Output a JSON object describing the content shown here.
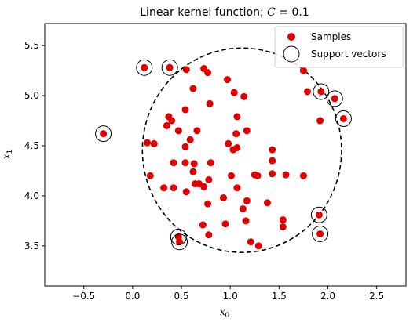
{
  "chart_data": {
    "type": "scatter",
    "title": "Linear kernel function; C = 0.1",
    "title_parts": {
      "prefix": "Linear kernel function; ",
      "var": "C",
      "suffix": " = 0.1"
    },
    "xlabel": {
      "base": "x",
      "sub": "0"
    },
    "ylabel": {
      "base": "x",
      "sub": "1"
    },
    "xlim": [
      -0.9,
      2.8
    ],
    "ylim": [
      3.1,
      5.72
    ],
    "xticks": [
      -0.5,
      0.0,
      0.5,
      1.0,
      1.5,
      2.0,
      2.5
    ],
    "xtick_labels": [
      "−0.5",
      "0.0",
      "0.5",
      "1.0",
      "1.5",
      "2.0",
      "2.5"
    ],
    "yticks": [
      3.5,
      4.0,
      4.5,
      5.0,
      5.5
    ],
    "ytick_labels": [
      "3.5",
      "4.0",
      "4.5",
      "5.0",
      "5.5"
    ],
    "grid": false,
    "legend_position": "top-right",
    "legend": [
      {
        "label": "Samples",
        "marker": "filled-circle",
        "color": "#e00000"
      },
      {
        "label": "Support vectors",
        "marker": "open-circle",
        "color": "#000000"
      }
    ],
    "colors": {
      "samples": "#e00000",
      "support_vectors": "#000000",
      "boundary": "#000000"
    },
    "boundary": {
      "style": "dashed",
      "shape": "circle",
      "center": [
        1.12,
        4.455
      ],
      "radius_x": 1.02,
      "radius_y": 1.02
    },
    "series": [
      {
        "name": "Samples",
        "points": [
          [
            -0.3,
            4.62
          ],
          [
            0.12,
            5.28
          ],
          [
            0.38,
            5.28
          ],
          [
            0.55,
            5.26
          ],
          [
            0.73,
            5.27
          ],
          [
            0.77,
            5.23
          ],
          [
            0.97,
            5.16
          ],
          [
            0.62,
            5.07
          ],
          [
            1.04,
            5.03
          ],
          [
            1.14,
            4.99
          ],
          [
            0.79,
            4.92
          ],
          [
            0.54,
            4.86
          ],
          [
            0.37,
            4.79
          ],
          [
            0.35,
            4.7
          ],
          [
            0.4,
            4.75
          ],
          [
            1.07,
            4.79
          ],
          [
            0.47,
            4.65
          ],
          [
            0.66,
            4.65
          ],
          [
            1.17,
            4.65
          ],
          [
            1.06,
            4.62
          ],
          [
            0.59,
            4.56
          ],
          [
            0.54,
            4.49
          ],
          [
            0.15,
            4.53
          ],
          [
            0.22,
            4.52
          ],
          [
            0.98,
            4.52
          ],
          [
            1.03,
            4.46
          ],
          [
            1.07,
            4.48
          ],
          [
            1.43,
            4.46
          ],
          [
            0.42,
            4.33
          ],
          [
            0.54,
            4.33
          ],
          [
            0.63,
            4.32
          ],
          [
            0.8,
            4.33
          ],
          [
            1.43,
            4.35
          ],
          [
            0.62,
            4.24
          ],
          [
            0.18,
            4.2
          ],
          [
            1.01,
            4.2
          ],
          [
            1.25,
            4.21
          ],
          [
            1.28,
            4.2
          ],
          [
            1.43,
            4.22
          ],
          [
            1.57,
            4.21
          ],
          [
            1.75,
            4.2
          ],
          [
            0.78,
            4.16
          ],
          [
            0.64,
            4.12
          ],
          [
            0.68,
            4.12
          ],
          [
            0.32,
            4.08
          ],
          [
            0.42,
            4.08
          ],
          [
            0.73,
            4.09
          ],
          [
            1.07,
            4.08
          ],
          [
            0.55,
            4.04
          ],
          [
            0.93,
            3.98
          ],
          [
            1.17,
            3.95
          ],
          [
            1.38,
            3.93
          ],
          [
            0.77,
            3.92
          ],
          [
            1.13,
            3.87
          ],
          [
            1.91,
            3.81
          ],
          [
            1.16,
            3.75
          ],
          [
            1.54,
            3.76
          ],
          [
            0.72,
            3.71
          ],
          [
            0.95,
            3.72
          ],
          [
            1.54,
            3.69
          ],
          [
            0.78,
            3.61
          ],
          [
            1.92,
            3.62
          ],
          [
            0.47,
            3.59
          ],
          [
            0.48,
            3.54
          ],
          [
            1.21,
            3.54
          ],
          [
            1.29,
            3.5
          ],
          [
            1.75,
            5.25
          ],
          [
            1.79,
            5.04
          ],
          [
            1.93,
            5.04
          ],
          [
            2.07,
            4.97
          ],
          [
            2.16,
            4.77
          ],
          [
            1.92,
            4.75
          ]
        ]
      },
      {
        "name": "Support vectors",
        "points": [
          [
            -0.3,
            4.62
          ],
          [
            0.12,
            5.28
          ],
          [
            0.38,
            5.28
          ],
          [
            1.93,
            5.04
          ],
          [
            2.07,
            4.97
          ],
          [
            2.16,
            4.77
          ],
          [
            1.91,
            3.81
          ],
          [
            1.92,
            3.62
          ],
          [
            0.47,
            3.59
          ],
          [
            0.48,
            3.54
          ]
        ]
      }
    ]
  }
}
